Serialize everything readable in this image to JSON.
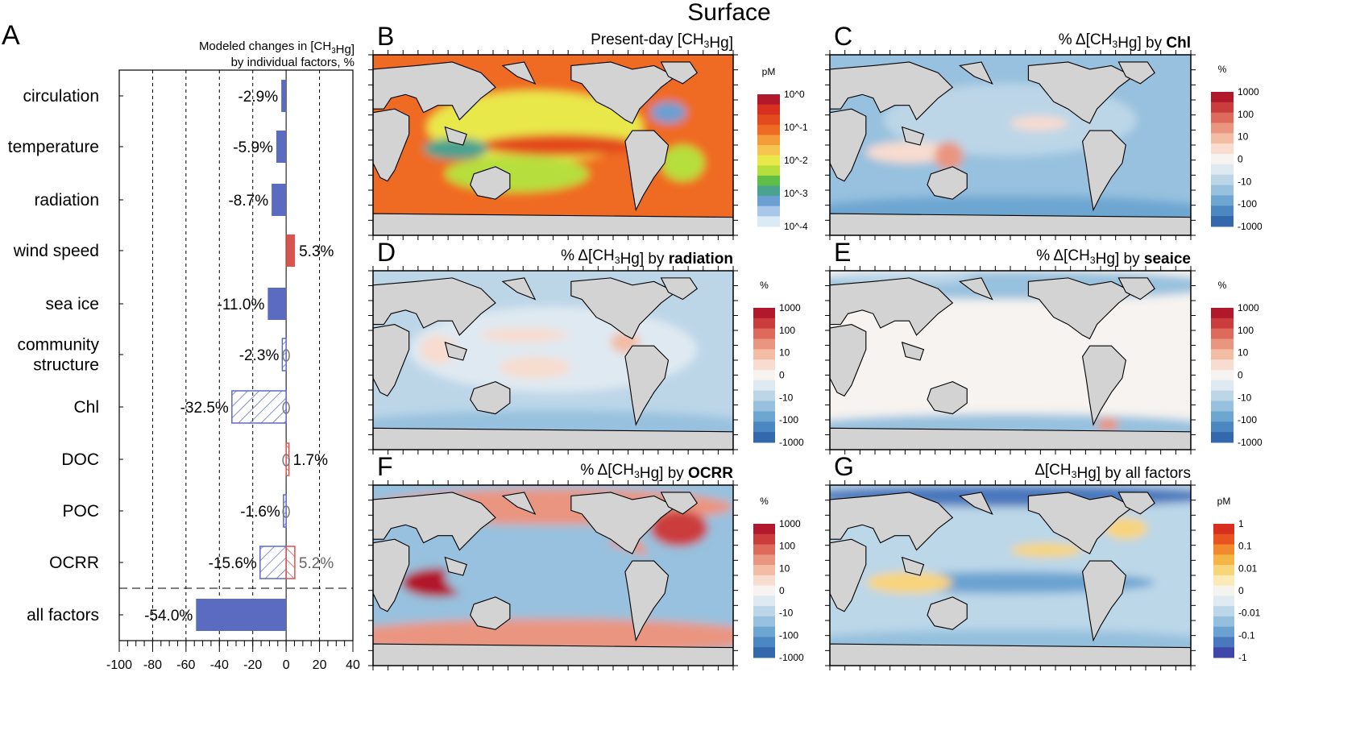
{
  "figure_title": "Surface",
  "panel_a": {
    "letter": "A",
    "title_line1": "Modeled changes in [CH3Hg]",
    "title_line2": "by individual factors, %"
  },
  "chart_data": [
    {
      "type": "bar",
      "orientation": "horizontal",
      "categories": [
        "circulation",
        "temperature",
        "radiation",
        "wind speed",
        "sea ice",
        "community structure",
        "Chl",
        "DOC",
        "POC",
        "OCRR",
        "all factors"
      ],
      "series": [
        {
          "values": [
            -2.9,
            -5.9,
            -8.7,
            5.3,
            -11.0,
            -2.3,
            -32.5,
            1.7,
            -1.6,
            -15.6,
            -54.0
          ]
        },
        {
          "values": [
            null,
            null,
            null,
            null,
            null,
            null,
            null,
            null,
            null,
            5.2,
            null
          ]
        }
      ],
      "labels": [
        "-2.9%",
        "-5.9%",
        "-8.7%",
        "5.3%",
        "-11.0%",
        "-2.3%",
        "-32.5%",
        "1.7%",
        "-1.6%",
        "-15.6%",
        "-54.0%"
      ],
      "secondary_labels": [
        "",
        "",
        "",
        "",
        "",
        "",
        "",
        "",
        "",
        "5.2%",
        ""
      ],
      "hatched": [
        false,
        false,
        false,
        false,
        false,
        true,
        true,
        true,
        true,
        true,
        false
      ],
      "zero_marker": [
        false,
        false,
        false,
        false,
        false,
        true,
        true,
        true,
        true,
        false,
        false
      ],
      "xlim": [
        -100,
        40
      ],
      "xticks": [
        -100,
        -80,
        -60,
        -40,
        -20,
        0,
        20,
        40
      ],
      "grid": "vertical dashed",
      "colors": {
        "negative": "#5b6bc0",
        "positive": "#d9534f"
      }
    }
  ],
  "maps": [
    {
      "letter": "B",
      "title": "Present-day [CH3Hg]",
      "bold": "",
      "unit": "pM",
      "ticks": [
        "10^0",
        "10^-1",
        "10^-2",
        "10^-3",
        "10^-4"
      ],
      "palette": "rainbow"
    },
    {
      "letter": "C",
      "title": "% Δ[CH3Hg] by ",
      "bold": "Chl",
      "unit": "%",
      "ticks": [
        "1000",
        "100",
        "10",
        "0",
        "-10",
        "-100",
        "-1000"
      ],
      "palette": "diverging"
    },
    {
      "letter": "D",
      "title": "% Δ[CH3Hg] by ",
      "bold": "radiation",
      "unit": "%",
      "ticks": [
        "1000",
        "100",
        "10",
        "0",
        "-10",
        "-100",
        "-1000"
      ],
      "palette": "diverging"
    },
    {
      "letter": "E",
      "title": "% Δ[CH3Hg] by ",
      "bold": "seaice",
      "unit": "%",
      "ticks": [
        "1000",
        "100",
        "10",
        "0",
        "-10",
        "-100",
        "-1000"
      ],
      "palette": "diverging"
    },
    {
      "letter": "F",
      "title": "% Δ[CH3Hg] by ",
      "bold": "OCRR",
      "unit": "%",
      "ticks": [
        "1000",
        "100",
        "10",
        "0",
        "-10",
        "-100",
        "-1000"
      ],
      "palette": "diverging"
    },
    {
      "letter": "G",
      "title": "Δ[CH3Hg] by all factors",
      "bold": "",
      "unit": "pM",
      "ticks": [
        "1",
        "0.1",
        "0.01",
        "0",
        "-0.01",
        "-0.1",
        "-1"
      ],
      "palette": "diverging-yellow"
    }
  ]
}
